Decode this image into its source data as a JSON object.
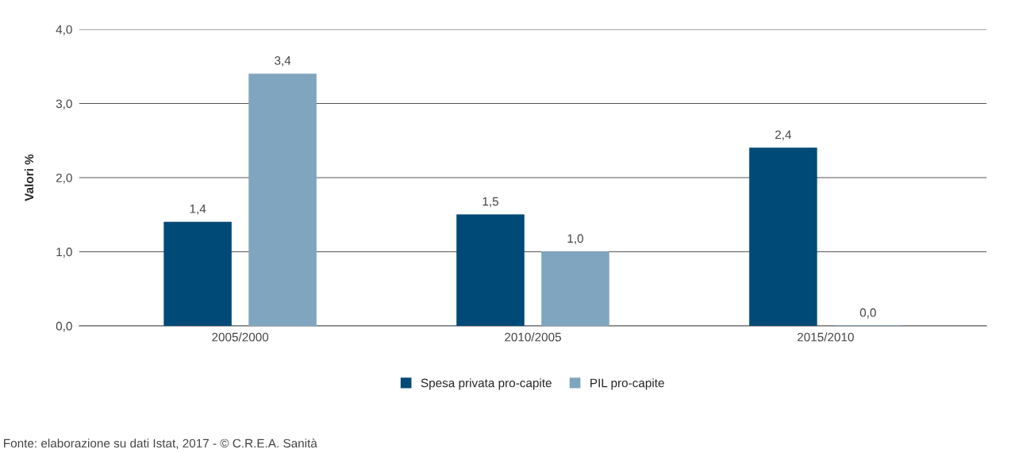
{
  "chart_data": {
    "type": "bar",
    "ylabel": "Valori %",
    "categories": [
      "2005/2000",
      "2010/2005",
      "2015/2010"
    ],
    "series": [
      {
        "name": "Spesa privata pro-capite",
        "color": "#004a77",
        "values": [
          1.4,
          1.5,
          2.4
        ],
        "value_labels": [
          "1,4",
          "1,5",
          "2,4"
        ]
      },
      {
        "name": "PIL pro-capite",
        "color": "#7fa5bf",
        "values": [
          3.4,
          1.0,
          0.0
        ],
        "value_labels": [
          "3,4",
          "1,0",
          "0,0"
        ]
      }
    ],
    "ylim": [
      0,
      4
    ],
    "yticks": [
      {
        "value": 0,
        "label": "0,0"
      },
      {
        "value": 1,
        "label": "1,0"
      },
      {
        "value": 2,
        "label": "2,0"
      },
      {
        "value": 3,
        "label": "3,0"
      },
      {
        "value": 4,
        "label": "4,0"
      }
    ],
    "grid": "y",
    "legend": "bottom",
    "annotations": [
      "Fonte: elaborazione su dati Istat, 2017 - © C.R.E.A. Sanità"
    ]
  }
}
